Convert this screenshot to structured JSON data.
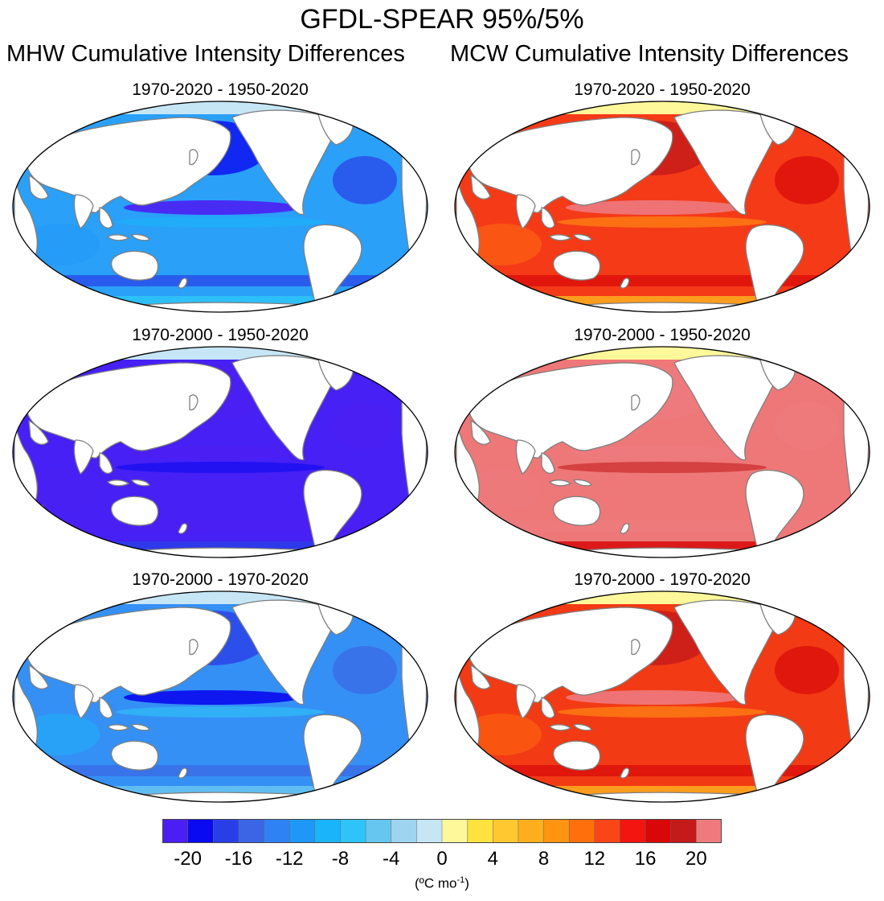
{
  "figure": {
    "title": "GFDL-SPEAR 95%/5%",
    "left_column_title": "MHW Cumulative Intensity Differences",
    "right_column_title": "MCW Cumulative Intensity Differences"
  },
  "panels": [
    {
      "id": "mhw-1",
      "title": "1970-2020 - 1950-2020",
      "variable": "MHW",
      "base_level": -12,
      "ocean_color": "#2aa0f8"
    },
    {
      "id": "mcw-1",
      "title": "1970-2020 - 1950-2020",
      "variable": "MCW",
      "base_level": 12,
      "ocean_color": "#f53a18"
    },
    {
      "id": "mhw-2",
      "title": "1970-2000 - 1950-2020",
      "variable": "MHW",
      "base_level": -22,
      "ocean_color": "#4620f5"
    },
    {
      "id": "mcw-2",
      "title": "1970-2000 - 1950-2020",
      "variable": "MCW",
      "base_level": 22,
      "ocean_color": "#ee7878"
    },
    {
      "id": "mhw-3",
      "title": "1970-2000 - 1970-2020",
      "variable": "MHW",
      "base_level": -11,
      "ocean_color": "#3590f5"
    },
    {
      "id": "mcw-3",
      "title": "1970-2000 - 1970-2020",
      "variable": "MCW",
      "base_level": 13,
      "ocean_color": "#f23a14"
    }
  ],
  "colorbar": {
    "colors": [
      "#4b1ff3",
      "#0a0af0",
      "#2a3ee8",
      "#3a66e6",
      "#2f82f4",
      "#1e98f8",
      "#1ab4fa",
      "#2ec4f8",
      "#66c6f0",
      "#9fd4f0",
      "#c6e6f6",
      "#fff89a",
      "#ffe240",
      "#ffc830",
      "#ffae1e",
      "#ff9410",
      "#ff700c",
      "#fa4516",
      "#f21510",
      "#d80808",
      "#c41a1a",
      "#ee7a7e"
    ],
    "tick_labels": [
      "-20",
      "-16",
      "-12",
      "-8",
      "-4",
      "0",
      "4",
      "8",
      "12",
      "16",
      "20"
    ],
    "units": "(ºC mo",
    "units_exponent": "-1",
    "units_close": ")"
  },
  "land_color": "#ffffff",
  "coast_color": "#7f7f7f"
}
